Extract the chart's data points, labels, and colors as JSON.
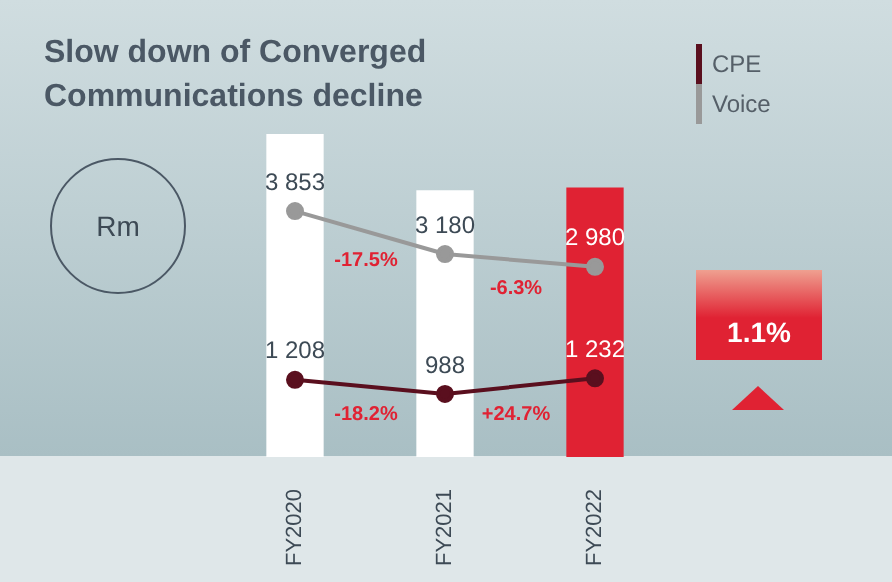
{
  "chart_data": {
    "type": "bar",
    "title": "Slow down of Converged Communications decline",
    "ylabel": "Rm",
    "tick_labels": "x",
    "legend": "top right",
    "marker": "circle",
    "categories": [
      "FY2020",
      "FY2021",
      "FY2022"
    ],
    "series": [
      {
        "colors": [
          "#ffffff",
          "#ffffff",
          "#e02233"
        ],
        "values": [
          5061,
          4168,
          4212
        ]
      },
      {
        "type": "line",
        "name": "CPE",
        "color": "#5a0f1e",
        "values": [
          1208,
          988,
          1232
        ],
        "value_labels": [
          "1 208",
          "988",
          "1 232"
        ]
      },
      {
        "type": "line",
        "name": "Voice",
        "color": "#999999",
        "values": [
          3853,
          3180,
          2980
        ],
        "value_labels": [
          "3 853",
          "3 180",
          "2 980"
        ]
      }
    ],
    "annotations": [
      "-17.5%",
      "-6.3%",
      "-18.2%",
      "+24.7%",
      "1.1%"
    ]
  }
}
